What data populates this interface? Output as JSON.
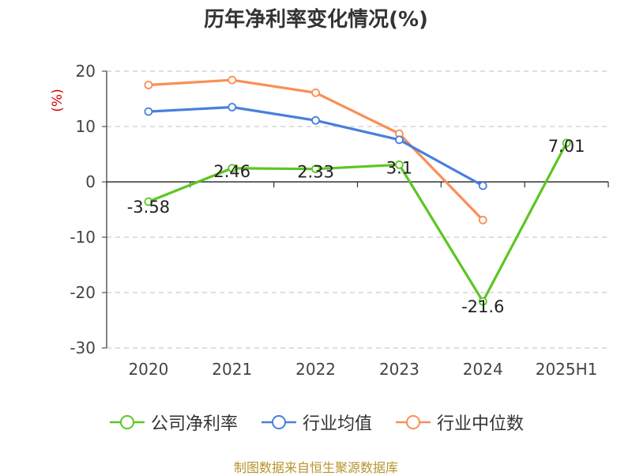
{
  "chart_data": {
    "type": "line",
    "title": "历年净利率变化情况(%)",
    "ylabel": "(%)",
    "xlabel": "",
    "categories": [
      "2020",
      "2021",
      "2022",
      "2023",
      "2024",
      "2025H1"
    ],
    "ylim": [
      -30,
      20
    ],
    "yticks": [
      "20",
      "10",
      "0",
      "-10",
      "-20",
      "-30"
    ],
    "grid": true,
    "legend_position": "bottom",
    "series": [
      {
        "name": "公司净利率",
        "color": "#5cc623",
        "values": [
          -3.58,
          2.46,
          2.33,
          3.1,
          -21.6,
          7.01
        ],
        "labels": [
          "-3.58",
          "2.46",
          "2.33",
          "3.1",
          "-21.6",
          "7.01"
        ]
      },
      {
        "name": "行业均值",
        "color": "#4a7fdc",
        "values": [
          12.7,
          13.5,
          11.1,
          7.6,
          -0.7,
          null
        ]
      },
      {
        "name": "行业中位数",
        "color": "#f98f56",
        "values": [
          17.5,
          18.4,
          16.1,
          8.7,
          -6.9,
          null
        ]
      }
    ]
  },
  "source": "制图数据来自恒生聚源数据库"
}
